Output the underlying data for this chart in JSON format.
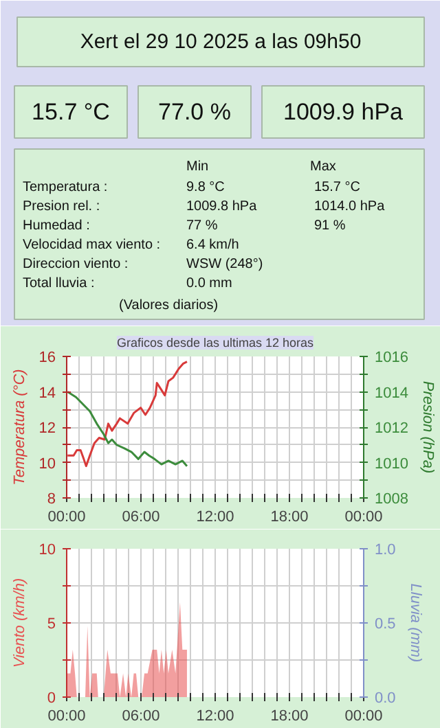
{
  "chart_data": [
    {
      "type": "other",
      "title": "Xert el 29 10 2025 a las 09h50",
      "annotations": [
        "15.7 °C",
        "77.0 %",
        "1009.9 hPa",
        "Min",
        "Max",
        "Temperatura :",
        "9.8 °C",
        "15.7 °C",
        "Presion rel. :",
        "1009.8 hPa",
        "1014.0 hPa",
        "Humedad :",
        "77 %",
        "91 %",
        "Velocidad max viento :",
        "6.4 km/h",
        "Direccion viento :",
        "WSW (248°)",
        "Total lluvia :",
        "0.0 mm",
        "(Valores diarios)"
      ]
    },
    {
      "type": "line",
      "title": "Graficos desde las ultimas 12 horas",
      "ylabel": "Temperatura (°C)",
      "y2label": "Presion (hPa)",
      "xlim": [
        0,
        24
      ],
      "xticks": [
        {
          "value": 0,
          "label": "00:00"
        },
        {
          "value": 1,
          "label": null
        },
        {
          "value": 2,
          "label": null
        },
        {
          "value": 3,
          "label": null
        },
        {
          "value": 4,
          "label": null
        },
        {
          "value": 5,
          "label": null
        },
        {
          "value": 6,
          "label": "06:00"
        },
        {
          "value": 7,
          "label": null
        },
        {
          "value": 8,
          "label": null
        },
        {
          "value": 9,
          "label": null
        },
        {
          "value": 10,
          "label": null
        },
        {
          "value": 11,
          "label": null
        },
        {
          "value": 12,
          "label": "12:00"
        },
        {
          "value": 13,
          "label": null
        },
        {
          "value": 14,
          "label": null
        },
        {
          "value": 15,
          "label": null
        },
        {
          "value": 16,
          "label": null
        },
        {
          "value": 17,
          "label": null
        },
        {
          "value": 18,
          "label": "18:00"
        },
        {
          "value": 19,
          "label": null
        },
        {
          "value": 20,
          "label": null
        },
        {
          "value": 21,
          "label": null
        },
        {
          "value": 22,
          "label": null
        },
        {
          "value": 23,
          "label": null
        },
        {
          "value": 24,
          "label": "00:00"
        }
      ],
      "ylim": [
        8,
        16
      ],
      "yticks": [
        8,
        {
          "value": 9,
          "label": null
        },
        10,
        {
          "value": 11,
          "label": null
        },
        12,
        {
          "value": 13,
          "label": null
        },
        14,
        {
          "value": 15,
          "label": null
        },
        16
      ],
      "y2lim": [
        1008,
        1016
      ],
      "y2ticks": [
        1008,
        {
          "value": 1009,
          "label": null
        },
        1010,
        {
          "value": 1011,
          "label": null
        },
        1012,
        {
          "value": 1013,
          "label": null
        },
        1014,
        {
          "value": 1015,
          "label": null
        },
        1016
      ],
      "grid": true,
      "series": [
        {
          "color": "#d83a3a",
          "x": [
            0.07,
            0.56,
            0.82,
            1.12,
            1.38,
            1.57,
            1.87,
            2.24,
            2.62,
            3.07,
            3.36,
            3.66,
            4.04,
            4.3,
            4.93,
            5.42,
            5.98,
            6.36,
            6.73,
            7.18,
            7.29,
            7.66,
            7.93,
            8.22,
            8.6,
            9.05,
            9.42,
            9.72
          ],
          "values": [
            10.4,
            10.4,
            10.7,
            10.7,
            10.2,
            9.8,
            10.4,
            11.1,
            11.4,
            11.3,
            12.2,
            11.8,
            12.2,
            12.5,
            12.2,
            12.8,
            13.1,
            12.7,
            13.1,
            13.8,
            14.5,
            14.1,
            13.8,
            14.6,
            14.8,
            15.3,
            15.6,
            15.7
          ]
        },
        {
          "color": "#3c8c3c",
          "axis": "y2",
          "x": [
            0.07,
            0.75,
            1.31,
            1.87,
            2.43,
            2.99,
            3.36,
            3.66,
            4.04,
            4.67,
            5.23,
            5.79,
            6.28,
            6.65,
            7.1,
            7.66,
            8.22,
            8.79,
            9.35,
            9.72
          ],
          "values": [
            1014.0,
            1013.7,
            1013.3,
            1012.9,
            1012.2,
            1011.6,
            1011.1,
            1011.3,
            1011.0,
            1010.8,
            1010.6,
            1010.2,
            1010.6,
            1010.4,
            1010.2,
            1009.9,
            1010.1,
            1009.9,
            1010.1,
            1009.8
          ]
        }
      ]
    },
    {
      "type": "area",
      "ylabel": "Viento (km/h)",
      "y2label": "Lluvia (mm)",
      "xlim": [
        0,
        24
      ],
      "xticks": [
        {
          "value": 0,
          "label": "00:00"
        },
        {
          "value": 1,
          "label": null
        },
        {
          "value": 2,
          "label": null
        },
        {
          "value": 3,
          "label": null
        },
        {
          "value": 4,
          "label": null
        },
        {
          "value": 5,
          "label": null
        },
        {
          "value": 6,
          "label": "06:00"
        },
        {
          "value": 7,
          "label": null
        },
        {
          "value": 8,
          "label": null
        },
        {
          "value": 9,
          "label": null
        },
        {
          "value": 10,
          "label": null
        },
        {
          "value": 11,
          "label": null
        },
        {
          "value": 12,
          "label": "12:00"
        },
        {
          "value": 13,
          "label": null
        },
        {
          "value": 14,
          "label": null
        },
        {
          "value": 15,
          "label": null
        },
        {
          "value": 16,
          "label": null
        },
        {
          "value": 17,
          "label": null
        },
        {
          "value": 18,
          "label": "18:00"
        },
        {
          "value": 19,
          "label": null
        },
        {
          "value": 20,
          "label": null
        },
        {
          "value": 21,
          "label": null
        },
        {
          "value": 22,
          "label": null
        },
        {
          "value": 23,
          "label": null
        },
        {
          "value": 24,
          "label": "00:00"
        }
      ],
      "ylim": [
        0,
        10
      ],
      "yticks": [
        0,
        {
          "value": 2.5,
          "label": null
        },
        5,
        {
          "value": 7.5,
          "label": null
        },
        10
      ],
      "y2lim": [
        0,
        1
      ],
      "y2ticks": [
        {
          "value": 0,
          "label": "0.0"
        },
        {
          "value": 0.25,
          "label": null
        },
        {
          "value": 0.5,
          "label": "0.5"
        },
        {
          "value": 0.75,
          "label": null
        },
        {
          "value": 1,
          "label": "1.0"
        }
      ],
      "grid": true,
      "series": [
        {
          "color": "#e85050",
          "x": [
            0,
            0.3,
            0.49,
            0.67,
            0.82,
            1.5,
            1.68,
            1.87,
            2.06,
            2.43,
            2.54,
            2.99,
            3.29,
            3.55,
            4.11,
            4.3,
            4.56,
            4.79,
            4.97,
            5.23,
            5.42,
            5.61,
            5.79,
            6.06,
            6.28,
            6.54,
            6.92,
            7.29,
            7.48,
            7.66,
            7.85,
            8.04,
            8.22,
            8.52,
            8.79,
            9.16,
            9.35,
            9.72
          ],
          "values": [
            1.6,
            1.6,
            3.2,
            1.6,
            0,
            0,
            4.8,
            0,
            1.6,
            1.6,
            0,
            0,
            3.2,
            1.6,
            1.6,
            0,
            1.6,
            0,
            1.6,
            0,
            1.6,
            1.6,
            0,
            0,
            1.6,
            1.6,
            3.2,
            3.2,
            1.6,
            3.2,
            1.6,
            3.2,
            1.6,
            3.2,
            1.6,
            6.4,
            3.2,
            3.2
          ]
        }
      ]
    }
  ]
}
